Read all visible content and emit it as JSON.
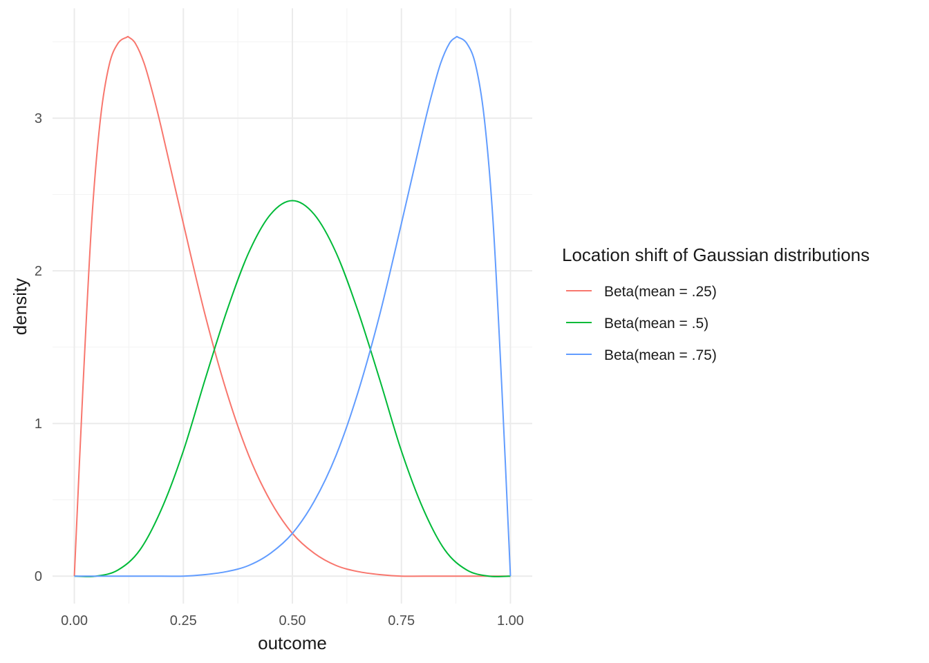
{
  "chart_data": {
    "type": "line",
    "xlabel": "outcome",
    "ylabel": "density",
    "xlim": [
      -0.05,
      1.05
    ],
    "ylim": [
      -0.18,
      3.72
    ],
    "x_ticks": [
      "0.00",
      "0.25",
      "0.50",
      "0.75",
      "1.00"
    ],
    "y_ticks": [
      "0",
      "1",
      "2",
      "3"
    ],
    "grid": true,
    "legend": {
      "title": "Location shift of Gaussian distributions",
      "position": "right"
    },
    "series": [
      {
        "name": "Beta(mean = .25)",
        "color": "#F8766D",
        "x": [
          0.0,
          0.02,
          0.04,
          0.06,
          0.08,
          0.1,
          0.12,
          0.125,
          0.14,
          0.16,
          0.18,
          0.2,
          0.25,
          0.3,
          0.35,
          0.4,
          0.45,
          0.5,
          0.55,
          0.6,
          0.65,
          0.7,
          0.75,
          0.8,
          0.9,
          1.0
        ],
        "y": [
          0.0,
          1.25,
          2.33,
          3.0,
          3.35,
          3.49,
          3.53,
          3.53,
          3.49,
          3.36,
          3.16,
          2.93,
          2.31,
          1.71,
          1.2,
          0.79,
          0.49,
          0.28,
          0.15,
          0.07,
          0.03,
          0.01,
          0.0,
          0.0,
          0.0,
          0.0
        ]
      },
      {
        "name": "Beta(mean = .5)",
        "color": "#00BA38",
        "x": [
          0.0,
          0.05,
          0.1,
          0.15,
          0.2,
          0.25,
          0.3,
          0.35,
          0.4,
          0.45,
          0.5,
          0.55,
          0.6,
          0.65,
          0.7,
          0.75,
          0.8,
          0.85,
          0.9,
          0.95,
          1.0
        ],
        "y": [
          0.0,
          0.0,
          0.04,
          0.17,
          0.44,
          0.82,
          1.29,
          1.74,
          2.12,
          2.37,
          2.46,
          2.37,
          2.12,
          1.74,
          1.29,
          0.82,
          0.44,
          0.17,
          0.04,
          0.0,
          0.0
        ]
      },
      {
        "name": "Beta(mean = .75)",
        "color": "#619CFF",
        "x": [
          0.0,
          0.1,
          0.2,
          0.25,
          0.3,
          0.35,
          0.4,
          0.45,
          0.5,
          0.55,
          0.6,
          0.65,
          0.7,
          0.75,
          0.8,
          0.82,
          0.84,
          0.86,
          0.875,
          0.88,
          0.9,
          0.92,
          0.94,
          0.96,
          0.98,
          1.0
        ],
        "y": [
          0.0,
          0.0,
          0.0,
          0.0,
          0.01,
          0.03,
          0.07,
          0.15,
          0.28,
          0.49,
          0.79,
          1.2,
          1.71,
          2.31,
          2.93,
          3.16,
          3.36,
          3.49,
          3.53,
          3.53,
          3.49,
          3.35,
          3.0,
          2.33,
          1.25,
          0.0
        ]
      }
    ]
  }
}
